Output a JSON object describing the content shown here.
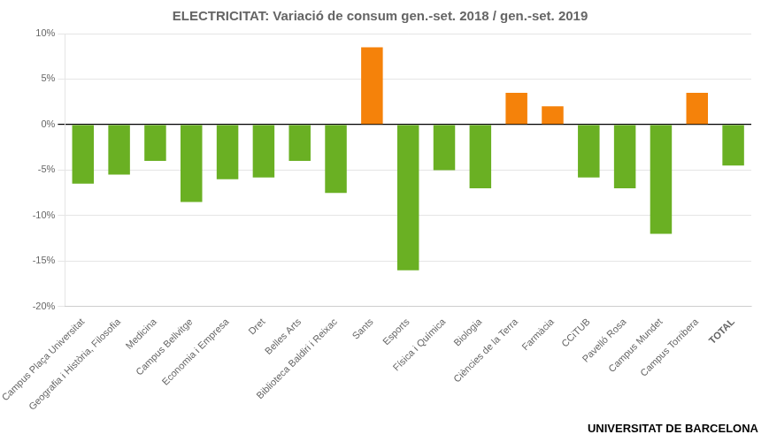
{
  "chart_data": {
    "type": "bar",
    "title": "ELECTRICITAT: Variació de consum gen.-set. 2018 / gen.-set. 2019",
    "categories": [
      "Campus Plaça Universitat",
      "Geografia i Història, Filosofia",
      "Medicina",
      "Campus Bellvitge",
      "Economia i Empresa",
      "Dret",
      "Belles Arts",
      "Biblioteca Baldiri i Reixac",
      "Sants",
      "Esports",
      "Física i Química",
      "Biologia",
      "Ciències de la Terra",
      "Farmàcia",
      "CCiTUB",
      "Pavelló Rosa",
      "Campus Mundet",
      "Campus Torribera",
      "TOTAL"
    ],
    "values": [
      -6.5,
      -5.5,
      -4.0,
      -8.5,
      -6.0,
      -5.8,
      -4.0,
      -7.5,
      8.5,
      -16.0,
      -5.0,
      -7.0,
      3.5,
      2.0,
      -5.8,
      -7.0,
      -12.0,
      3.5,
      -4.5
    ],
    "colors": [
      "#6AB023",
      "#6AB023",
      "#6AB023",
      "#6AB023",
      "#6AB023",
      "#6AB023",
      "#6AB023",
      "#6AB023",
      "#F5820A",
      "#6AB023",
      "#6AB023",
      "#6AB023",
      "#F5820A",
      "#F5820A",
      "#6AB023",
      "#6AB023",
      "#6AB023",
      "#F5820A",
      "#6AB023"
    ],
    "ylim": [
      -20,
      10
    ],
    "yticks": [
      {
        "value": -20,
        "label": "-20%"
      },
      {
        "value": -15,
        "label": "-15%"
      },
      {
        "value": -10,
        "label": "-10%"
      },
      {
        "value": -5,
        "label": "-5%"
      },
      {
        "value": 0,
        "label": "0%"
      },
      {
        "value": 5,
        "label": "5%"
      },
      {
        "value": 10,
        "label": "10%"
      }
    ],
    "grid": true,
    "annotations": [
      "UNIVERSITAT",
      "DE",
      "BARCELONA"
    ]
  }
}
